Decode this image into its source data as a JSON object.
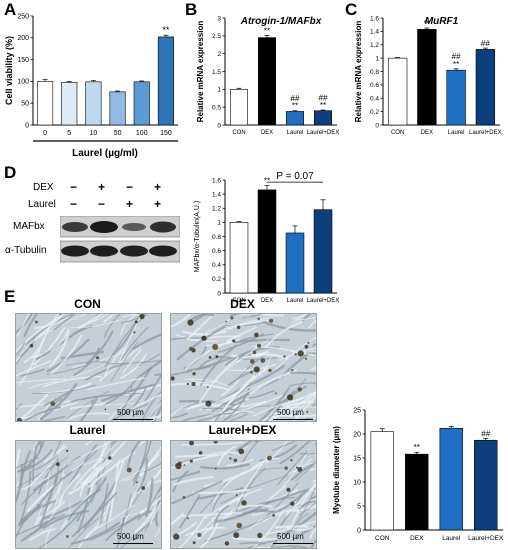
{
  "panels": {
    "a": "A",
    "b": "B",
    "c": "C",
    "d": "D",
    "e": "E"
  },
  "chart_data": [
    {
      "id": "A",
      "type": "bar",
      "ylabel": "Cell viability (%)",
      "xlabel": "Laurel (µg/ml)",
      "categories": [
        "0",
        "5",
        "10",
        "50",
        "100",
        "150"
      ],
      "values": [
        100,
        98,
        99,
        76,
        99,
        202
      ],
      "errors": [
        4,
        2,
        3,
        2,
        2,
        4
      ],
      "significance": [
        "",
        "",
        "",
        "",
        "",
        "**"
      ],
      "ylim": [
        0,
        250
      ],
      "yticks": [
        0,
        50,
        100,
        150,
        200,
        250
      ],
      "colors": [
        "#ffffff",
        "#deebf7",
        "#bdd7ee",
        "#8fbbe3",
        "#5b9bd5",
        "#2e75b6"
      ]
    },
    {
      "id": "B",
      "type": "bar",
      "title": "Atrogin-1/MAFbx",
      "ylabel": "Relative mRNA expression",
      "categories": [
        "CON",
        "DEX",
        "Laurel",
        "Laurel+DEX"
      ],
      "values": [
        1.0,
        2.45,
        0.38,
        0.4
      ],
      "errors": [
        0.03,
        0.06,
        0.02,
        0.02
      ],
      "significance": [
        "",
        "**",
        "##\n**",
        "##\n**"
      ],
      "ylim": [
        0,
        3
      ],
      "yticks": [
        0,
        0.5,
        1,
        1.5,
        2,
        2.5,
        3
      ],
      "colors": [
        "#ffffff",
        "#000000",
        "#1f6fc5",
        "#0e3f7d"
      ]
    },
    {
      "id": "C",
      "type": "bar",
      "title": "MuRF1",
      "ylabel": "Relative mRNA expression",
      "categories": [
        "CON",
        "DEX",
        "Laurel",
        "Laurel+DEX"
      ],
      "values": [
        1.0,
        1.43,
        0.82,
        1.13
      ],
      "errors": [
        0.01,
        0.02,
        0.02,
        0.02
      ],
      "significance": [
        "",
        "**",
        "##\n**",
        "##"
      ],
      "ylim": [
        0,
        1.6
      ],
      "yticks": [
        0,
        0.2,
        0.4,
        0.6,
        0.8,
        1,
        1.2,
        1.4,
        1.6
      ],
      "colors": [
        "#ffffff",
        "#000000",
        "#1f6fc5",
        "#0e3f7d"
      ]
    },
    {
      "id": "D",
      "type": "bar",
      "ylabel": "MAFbx/α-Tubulin(A.U.)",
      "categories": [
        "CON",
        "DEX",
        "Laurel",
        "Laurel+DEX"
      ],
      "values": [
        1.0,
        1.46,
        0.85,
        1.18
      ],
      "errors": [
        0.01,
        0.06,
        0.1,
        0.14
      ],
      "significance": [
        "",
        "**",
        "",
        ""
      ],
      "bracket_label": "P = 0.07",
      "ylim": [
        0,
        1.6
      ],
      "yticks": [
        0,
        0.2,
        0.4,
        0.6,
        0.8,
        1,
        1.2,
        1.4,
        1.6
      ],
      "colors": [
        "#ffffff",
        "#000000",
        "#1f6fc5",
        "#0e3f7d"
      ]
    },
    {
      "id": "E",
      "type": "bar",
      "ylabel": "Myotube diameter (µm)",
      "categories": [
        "CON",
        "DEX",
        "Laurel",
        "Laurel+DEX"
      ],
      "values": [
        20.5,
        15.8,
        21.2,
        18.7
      ],
      "errors": [
        0.6,
        0.4,
        0.4,
        0.4
      ],
      "significance": [
        "",
        "**",
        "",
        "##"
      ],
      "ylim": [
        0,
        25
      ],
      "yticks": [
        0,
        5,
        10,
        15,
        20,
        25
      ],
      "colors": [
        "#ffffff",
        "#000000",
        "#1f6fc5",
        "#0e3f7d"
      ]
    }
  ],
  "western": {
    "rows": [
      "DEX",
      "Laurel"
    ],
    "signs": [
      [
        "−",
        "+",
        "−",
        "+"
      ],
      [
        "−",
        "−",
        "+",
        "+"
      ]
    ],
    "bands": [
      "MAFbx",
      "α-Tubulin"
    ]
  },
  "micrographs": {
    "titles": [
      "CON",
      "DEX",
      "Laurel",
      "Laurel+DEX"
    ],
    "scale_label": "500 µm"
  }
}
